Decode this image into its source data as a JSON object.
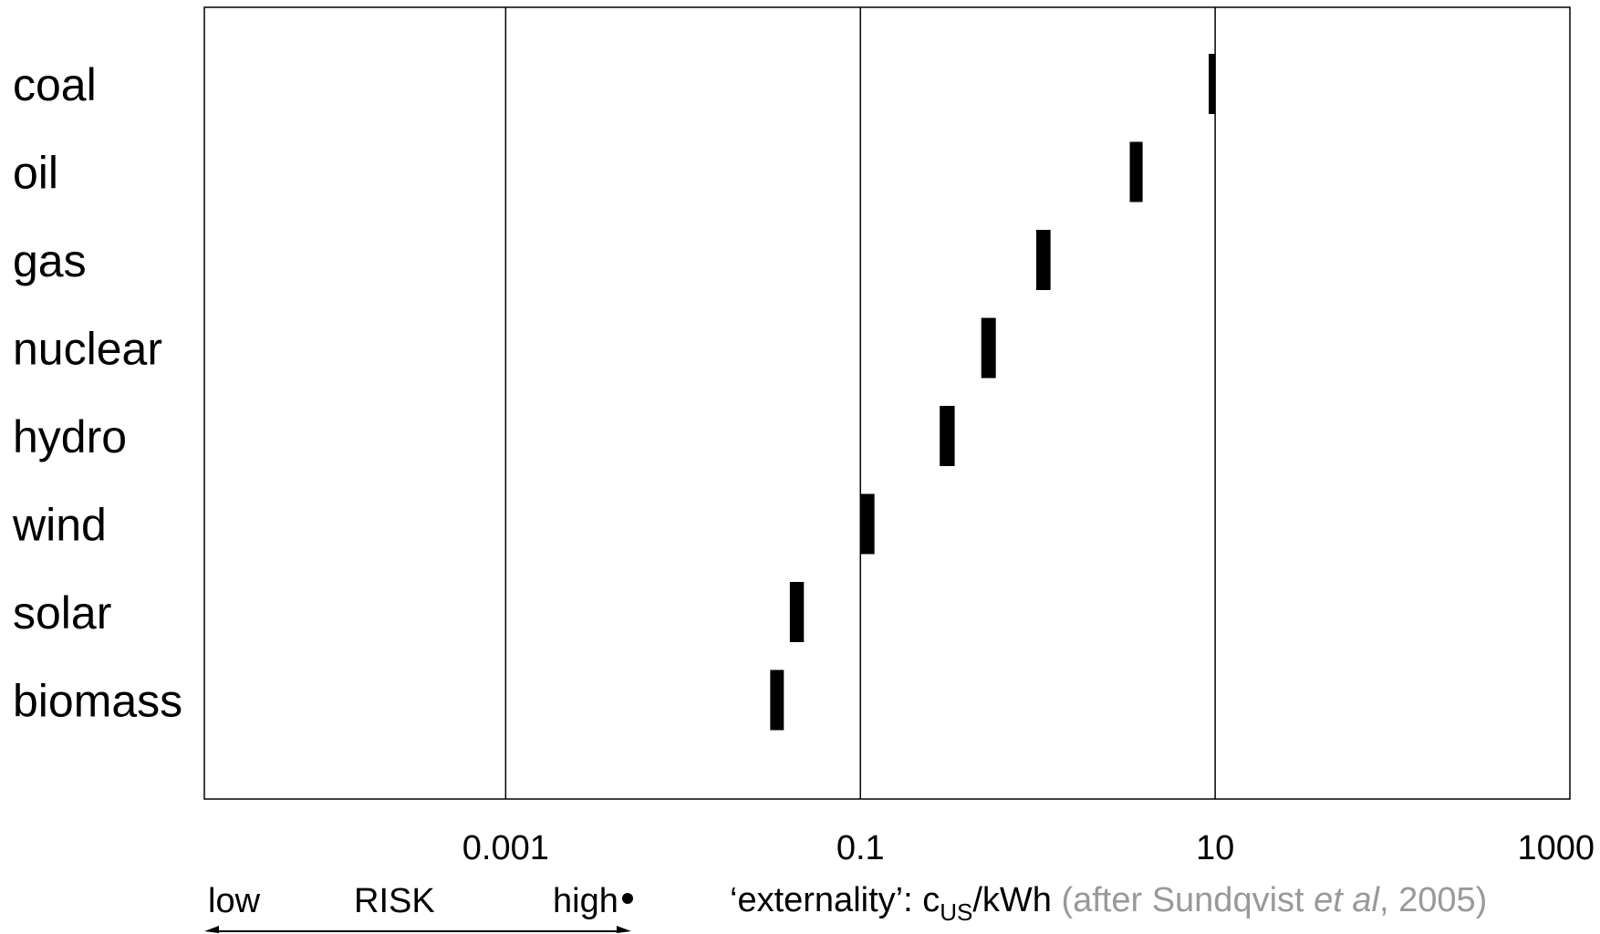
{
  "chart_data": {
    "type": "bar",
    "scale": "log",
    "categories": [
      "coal",
      "oil",
      "gas",
      "nuclear",
      "hydro",
      "wind",
      "solar",
      "biomass"
    ],
    "ranges": [
      [
        9.2,
        10
      ],
      [
        3.3,
        3.9
      ],
      [
        0.98,
        1.18
      ],
      [
        0.48,
        0.58
      ],
      [
        0.28,
        0.34
      ],
      [
        0.1,
        0.12
      ],
      [
        0.04,
        0.048
      ],
      [
        0.031,
        0.037
      ]
    ],
    "xlim": [
      2e-05,
      1000
    ],
    "xticks": [
      {
        "value": 0.001,
        "label": "0.001"
      },
      {
        "value": 0.1,
        "label": "0.1"
      },
      {
        "value": 10,
        "label": "10"
      },
      {
        "value": 1000,
        "label": "1000"
      }
    ],
    "grid": true,
    "risk_axis": {
      "low": "low",
      "title": "RISK",
      "high": "high"
    },
    "xlabel": {
      "prefix": "‘externality’: c",
      "subscript": "US",
      "suffix": "/kWh",
      "source_open": " (after Sundqvist ",
      "source_italic": "et al",
      "source_close": ", 2005)"
    },
    "colors": {
      "bars": "#000000",
      "source_text": "#999999",
      "grid": "#000000"
    }
  }
}
